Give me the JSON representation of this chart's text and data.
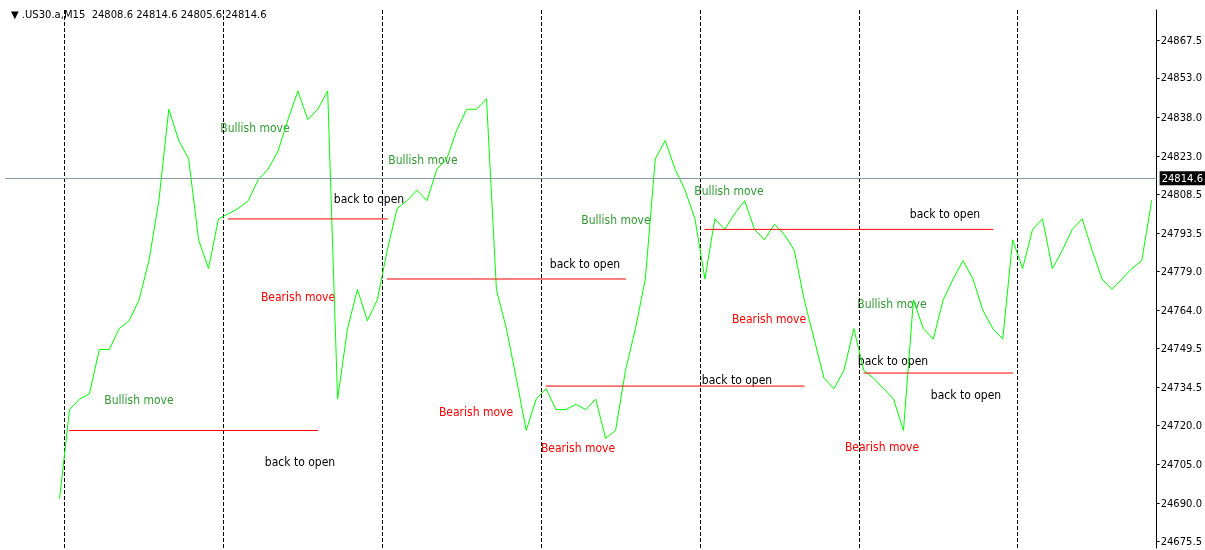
{
  "chart_data": {
    "type": "line",
    "title": "▼ .US30.a,M15  24808.6 24814.6 24805.6 24814.6",
    "categories": [
      null,
      null,
      null,
      null,
      null,
      null,
      null,
      null,
      null,
      null,
      null,
      null,
      null,
      null,
      null,
      null,
      null,
      null,
      null,
      null,
      null,
      null,
      null,
      null,
      null,
      null,
      null,
      null,
      null,
      null,
      null,
      null,
      null,
      null,
      null,
      null,
      null,
      null,
      null,
      null,
      null,
      null,
      null,
      null,
      null,
      null,
      null,
      null,
      null,
      null,
      null,
      null,
      null,
      null,
      null,
      null,
      null,
      null,
      null,
      null,
      null,
      null,
      null,
      null,
      null,
      null,
      null,
      null,
      null,
      null,
      null,
      null,
      null,
      null,
      null,
      null,
      null,
      null,
      null,
      null,
      null,
      null,
      null,
      null,
      null,
      null,
      null,
      null,
      null,
      null,
      null,
      null,
      null,
      null,
      null,
      null,
      null,
      null,
      null,
      null,
      null,
      null,
      null,
      null,
      null,
      null,
      null,
      null,
      null,
      null,
      null,
      null,
      null,
      null,
      null,
      null
    ],
    "series": [
      {
        "color": "#00ff00",
        "values": [
          null,
          null,
          null,
          null,
          null,
          24692,
          24726,
          24730,
          24732,
          24749,
          24749,
          24757,
          24760,
          24768,
          24783,
          24806,
          24841,
          24829,
          24822,
          24791,
          24780,
          24799,
          24801,
          24803,
          24806,
          24814,
          24818,
          24825,
          24837,
          24848,
          24837,
          24841,
          24848,
          24730,
          24757,
          24772,
          24760,
          24768,
          24787,
          24803,
          24806,
          24810,
          24806,
          24818,
          24822,
          24833,
          24841,
          24841,
          24845,
          24772,
          24757,
          24738,
          24718,
          24730,
          24734,
          24726,
          24726,
          24728,
          24726,
          24730,
          24715,
          24718,
          24741,
          24757,
          24776,
          24822,
          24829,
          24818,
          24810,
          24799,
          24776,
          24799,
          24795,
          24801,
          24806,
          24795,
          24791,
          24797,
          24793,
          24787,
          24768,
          24753,
          24738,
          24734,
          24741,
          24757,
          24741,
          24738,
          24734,
          24730,
          24718,
          24768,
          24757,
          24753,
          24768,
          24776,
          24783,
          24776,
          24764,
          24757,
          24753,
          24791,
          24780,
          24795,
          24799,
          24780,
          24787,
          24795,
          24799,
          24787,
          24776,
          24772,
          24776,
          24780,
          24783,
          24806
        ]
      },
      {
        "color": "#ff0000",
        "values": [
          null,
          null,
          null,
          null,
          null,
          null,
          24718,
          null,
          null,
          null,
          null,
          null,
          null,
          null,
          null,
          null,
          null,
          null,
          null,
          null,
          null,
          null,
          null,
          null,
          null,
          null,
          null,
          null,
          null,
          null,
          null,
          24718,
          null,
          null,
          null,
          null,
          null,
          null,
          null,
          null,
          null,
          null,
          null,
          null,
          null,
          null,
          null,
          null,
          null,
          null,
          null,
          null,
          null,
          null,
          null,
          null,
          null,
          null,
          null,
          null,
          null,
          null,
          null,
          null,
          null,
          null,
          null,
          null,
          null,
          null,
          null,
          null,
          null,
          null,
          null,
          null,
          null,
          null,
          null,
          null,
          null,
          null,
          null,
          null,
          null,
          null,
          null,
          null,
          null,
          null,
          null,
          null,
          null,
          null,
          null,
          null,
          null,
          null,
          null,
          null,
          null,
          null,
          null,
          null,
          null,
          null,
          null,
          null,
          null,
          null,
          null,
          null,
          null,
          null,
          null,
          null
        ]
      },
      {
        "color": "#ff0000",
        "values": [
          null,
          null,
          null,
          null,
          null,
          null,
          null,
          null,
          null,
          null,
          null,
          null,
          null,
          null,
          null,
          null,
          null,
          null,
          null,
          null,
          null,
          null,
          24799,
          null,
          null,
          null,
          null,
          null,
          null,
          null,
          null,
          null,
          null,
          null,
          null,
          null,
          null,
          null,
          24799,
          null,
          null,
          null,
          null,
          null,
          null,
          null,
          null,
          null,
          null,
          null,
          null,
          null,
          null,
          null,
          null,
          null,
          null,
          null,
          null,
          null,
          null,
          null,
          null,
          null,
          null,
          null,
          null,
          null,
          null,
          null,
          null,
          null,
          null,
          null,
          null,
          null,
          null,
          null,
          null,
          null,
          null,
          null,
          null,
          null,
          null,
          null,
          null,
          null,
          null,
          null,
          null,
          null,
          null,
          null,
          null,
          null,
          null,
          null,
          null,
          null,
          null,
          null,
          null,
          null,
          null,
          null,
          null,
          null,
          null,
          null,
          null,
          null,
          null,
          null,
          null,
          null
        ]
      },
      {
        "color": "#ff0000",
        "values": [
          null,
          null,
          null,
          null,
          null,
          null,
          null,
          null,
          null,
          null,
          null,
          null,
          null,
          null,
          null,
          null,
          null,
          null,
          null,
          null,
          null,
          null,
          null,
          null,
          null,
          null,
          null,
          null,
          null,
          null,
          null,
          null,
          null,
          null,
          null,
          null,
          null,
          null,
          24776,
          null,
          null,
          null,
          null,
          null,
          null,
          null,
          null,
          null,
          null,
          null,
          null,
          null,
          null,
          null,
          null,
          null,
          null,
          null,
          null,
          null,
          null,
          null,
          24776,
          null,
          null,
          null,
          null,
          null,
          null,
          null,
          null,
          null,
          null,
          null,
          null,
          null,
          null,
          null,
          null,
          null,
          null,
          null,
          null,
          null,
          null,
          null,
          null,
          null,
          null,
          null,
          null,
          null,
          null,
          null,
          null,
          null,
          null,
          null,
          null,
          null,
          null,
          null,
          null,
          null,
          null,
          null,
          null,
          null,
          null,
          null,
          null,
          null,
          null,
          null,
          null,
          null
        ]
      },
      {
        "color": "#ff0000",
        "values": [
          null,
          null,
          null,
          null,
          null,
          null,
          null,
          null,
          null,
          null,
          null,
          null,
          null,
          null,
          null,
          null,
          null,
          null,
          null,
          null,
          null,
          null,
          null,
          null,
          null,
          null,
          null,
          null,
          null,
          null,
          null,
          null,
          null,
          null,
          null,
          null,
          null,
          null,
          null,
          null,
          null,
          null,
          null,
          null,
          null,
          null,
          null,
          null,
          null,
          null,
          null,
          null,
          null,
          null,
          24735,
          null,
          null,
          null,
          null,
          null,
          null,
          null,
          null,
          null,
          null,
          null,
          null,
          null,
          null,
          null,
          null,
          null,
          null,
          null,
          null,
          null,
          null,
          null,
          null,
          null,
          24735,
          null,
          null,
          null,
          null,
          null,
          null,
          null,
          null,
          null,
          null,
          null,
          null,
          null,
          null,
          null,
          null,
          null,
          null,
          null,
          null,
          null,
          null,
          null,
          null,
          null,
          null,
          null,
          null,
          null,
          null,
          null,
          null,
          null,
          null,
          null
        ]
      },
      {
        "color": "#ff0000",
        "values": [
          null,
          null,
          null,
          null,
          null,
          null,
          null,
          null,
          null,
          null,
          null,
          null,
          null,
          null,
          null,
          null,
          null,
          null,
          null,
          null,
          null,
          null,
          null,
          null,
          null,
          null,
          null,
          null,
          null,
          null,
          null,
          null,
          null,
          null,
          null,
          null,
          null,
          null,
          null,
          null,
          null,
          null,
          null,
          null,
          null,
          null,
          null,
          null,
          null,
          null,
          null,
          null,
          null,
          null,
          null,
          null,
          null,
          null,
          null,
          null,
          null,
          null,
          null,
          null,
          null,
          null,
          null,
          null,
          null,
          null,
          24795,
          null,
          null,
          null,
          null,
          null,
          null,
          null,
          null,
          null,
          null,
          null,
          null,
          null,
          null,
          null,
          null,
          null,
          null,
          null,
          null,
          null,
          null,
          null,
          null,
          null,
          null,
          null,
          null,
          24795,
          null,
          null,
          null,
          null,
          null,
          null,
          null,
          null,
          null,
          null,
          null,
          null,
          null,
          null,
          null,
          null
        ]
      },
      {
        "color": "#ff0000",
        "values": [
          null,
          null,
          null,
          null,
          null,
          null,
          null,
          null,
          null,
          null,
          null,
          null,
          null,
          null,
          null,
          null,
          null,
          null,
          null,
          null,
          null,
          null,
          null,
          null,
          null,
          null,
          null,
          null,
          null,
          null,
          null,
          null,
          null,
          null,
          null,
          null,
          null,
          null,
          null,
          null,
          null,
          null,
          null,
          null,
          null,
          null,
          null,
          null,
          null,
          null,
          null,
          null,
          null,
          null,
          null,
          null,
          null,
          null,
          null,
          null,
          null,
          null,
          null,
          null,
          null,
          null,
          null,
          null,
          null,
          null,
          null,
          null,
          null,
          null,
          null,
          null,
          null,
          null,
          null,
          null,
          null,
          null,
          null,
          null,
          null,
          null,
          24740,
          null,
          null,
          null,
          null,
          null,
          null,
          null,
          null,
          null,
          null,
          null,
          null,
          null,
          null,
          24740,
          null,
          null,
          null,
          null,
          null,
          null,
          null,
          null,
          null,
          null,
          null,
          null,
          null,
          null
        ]
      }
    ],
    "ylim": [
      24673,
      24879
    ],
    "yticks": [
      {
        "value": 24675.5,
        "label": "24675.5"
      },
      {
        "value": 24690,
        "label": "24690.0"
      },
      {
        "value": 24705,
        "label": "24705.0"
      },
      {
        "value": 24720,
        "label": "24720.0"
      },
      {
        "value": 24734.5,
        "label": "24734.5"
      },
      {
        "value": 24749.5,
        "label": "24749.5"
      },
      {
        "value": 24764,
        "label": "24764.0"
      },
      {
        "value": 24779,
        "label": "24779.0"
      },
      {
        "value": 24793.5,
        "label": "24793.5"
      },
      {
        "value": 24808.5,
        "label": "24808.5"
      },
      {
        "value": 24823,
        "label": "24823.0"
      },
      {
        "value": 24838,
        "label": "24838.0"
      },
      {
        "value": 24853,
        "label": "24853.0"
      },
      {
        "value": 24867.5,
        "label": "24867.5"
      }
    ],
    "ref_lines": [
      {
        "axis": "y",
        "value": 24814.6,
        "label": "24814.6",
        "color": "#8a9aa9"
      }
    ],
    "annotations": [
      "Bullish move",
      "Bullish move",
      "Bullish move",
      "Bullish move",
      "Bullish move",
      "Bullish move",
      "back to open",
      "back to open",
      "back to open",
      "back to open",
      "back to open",
      "back to open",
      "back to open",
      "Bearish move",
      "Bearish move",
      "Bearish move",
      "Bearish move",
      "Bearish move"
    ],
    "grid": "x",
    "tick_labels": "y",
    "marker": "none",
    "line_style": "solid"
  }
}
